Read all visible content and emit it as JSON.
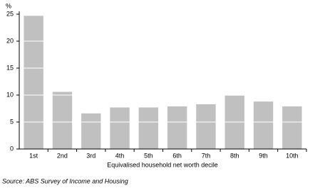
{
  "chart_data": {
    "type": "bar",
    "y_label": "%",
    "x_label": "Equivalised household net worth decile",
    "source": "Source: ABS Survey of Income and Housing",
    "categories": [
      "1st",
      "2nd",
      "3rd",
      "4th",
      "5th",
      "6th",
      "7th",
      "8th",
      "9th",
      "10th"
    ],
    "values": [
      24.7,
      10.6,
      6.6,
      7.7,
      7.7,
      7.9,
      8.3,
      9.9,
      8.8,
      7.9
    ],
    "color": "#c0c0c0",
    "ylim": [
      0,
      25
    ],
    "yticks": [
      0,
      5,
      10,
      15,
      20,
      25
    ],
    "grid": true,
    "grid_color": "#ffffff"
  }
}
